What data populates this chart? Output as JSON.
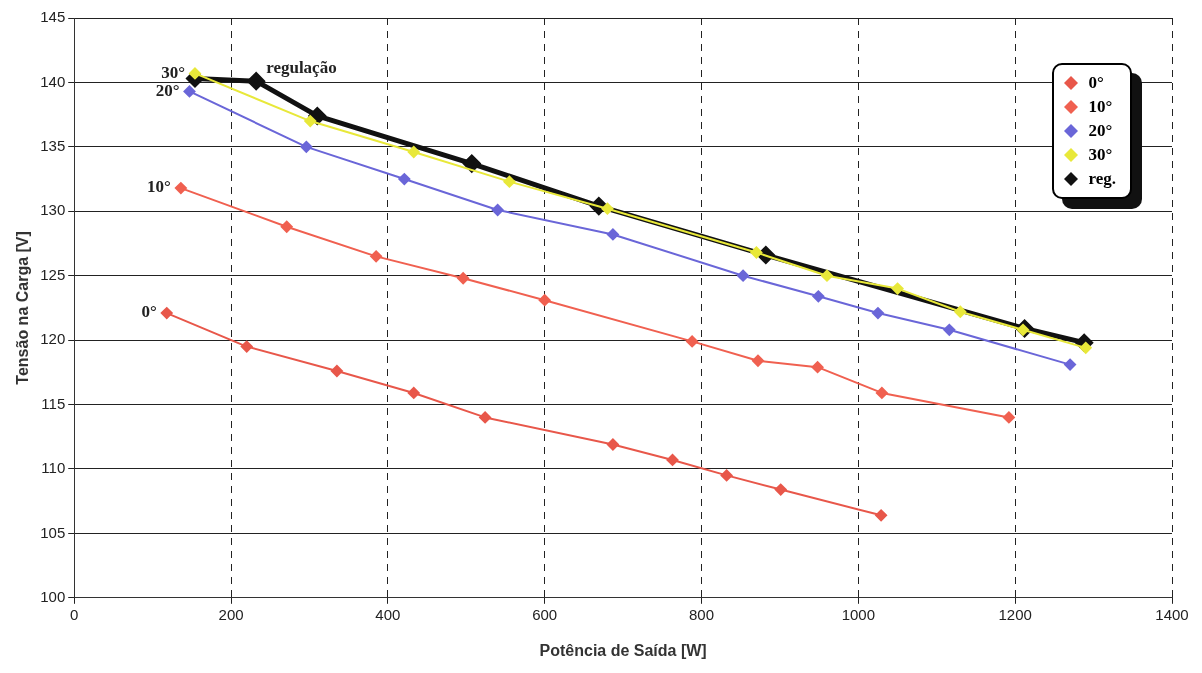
{
  "chart_data": {
    "type": "line",
    "xlabel": "Potência de Saída [W]",
    "ylabel": "Tensão na Carga [V]",
    "xlim": [
      0,
      1400
    ],
    "xticks": [
      0,
      200,
      400,
      600,
      800,
      1000,
      1200,
      1400
    ],
    "ylim": [
      100,
      145
    ],
    "yticks": [
      100,
      105,
      110,
      115,
      120,
      125,
      130,
      135,
      140,
      145
    ],
    "grid": true,
    "legend": "top right",
    "marker": "diamond",
    "line_style": "solid",
    "series": [
      {
        "name": "0°",
        "color": "#e8574a",
        "x": [
          118,
          220,
          335,
          433,
          524,
          687,
          763,
          832,
          901,
          1029
        ],
        "values": [
          122.1,
          119.5,
          117.6,
          115.9,
          114.0,
          111.9,
          110.7,
          109.5,
          108.4,
          106.4
        ]
      },
      {
        "name": "10°",
        "color": "#f06050",
        "x": [
          136,
          271,
          385,
          496,
          600,
          788,
          872,
          948,
          1030,
          1192
        ],
        "values": [
          131.8,
          128.8,
          126.5,
          124.8,
          123.1,
          119.9,
          118.4,
          117.9,
          115.9,
          114.0
        ]
      },
      {
        "name": "20°",
        "color": "#6a66d8",
        "x": [
          147,
          296,
          421,
          540,
          687,
          853,
          949,
          1025,
          1116,
          1270
        ],
        "values": [
          139.3,
          135.0,
          132.5,
          130.1,
          128.2,
          125.0,
          123.4,
          122.1,
          120.8,
          118.1
        ]
      },
      {
        "name": "30°",
        "color": "#e8e83a",
        "x": [
          154,
          301,
          433,
          555,
          680,
          870,
          960,
          1050,
          1130,
          1210,
          1290
        ],
        "values": [
          140.7,
          137.0,
          134.6,
          132.3,
          130.2,
          126.8,
          125.0,
          124.0,
          122.2,
          120.8,
          119.4
        ]
      },
      {
        "name": "reg.",
        "color": "#111111",
        "x": [
          154,
          232,
          310,
          507,
          669,
          882,
          1212,
          1288
        ],
        "values": [
          140.3,
          140.1,
          137.4,
          133.7,
          130.4,
          126.6,
          120.9,
          119.8
        ]
      }
    ],
    "annotations": [
      {
        "text": "30°",
        "x": 154,
        "y": 140.7
      },
      {
        "text": "20°",
        "x": 147,
        "y": 139.3
      },
      {
        "text": "10°",
        "x": 136,
        "y": 131.8
      },
      {
        "text": "0°",
        "x": 118,
        "y": 122.1
      },
      {
        "text": "regulação",
        "x": 232,
        "y": 140.1
      }
    ]
  }
}
